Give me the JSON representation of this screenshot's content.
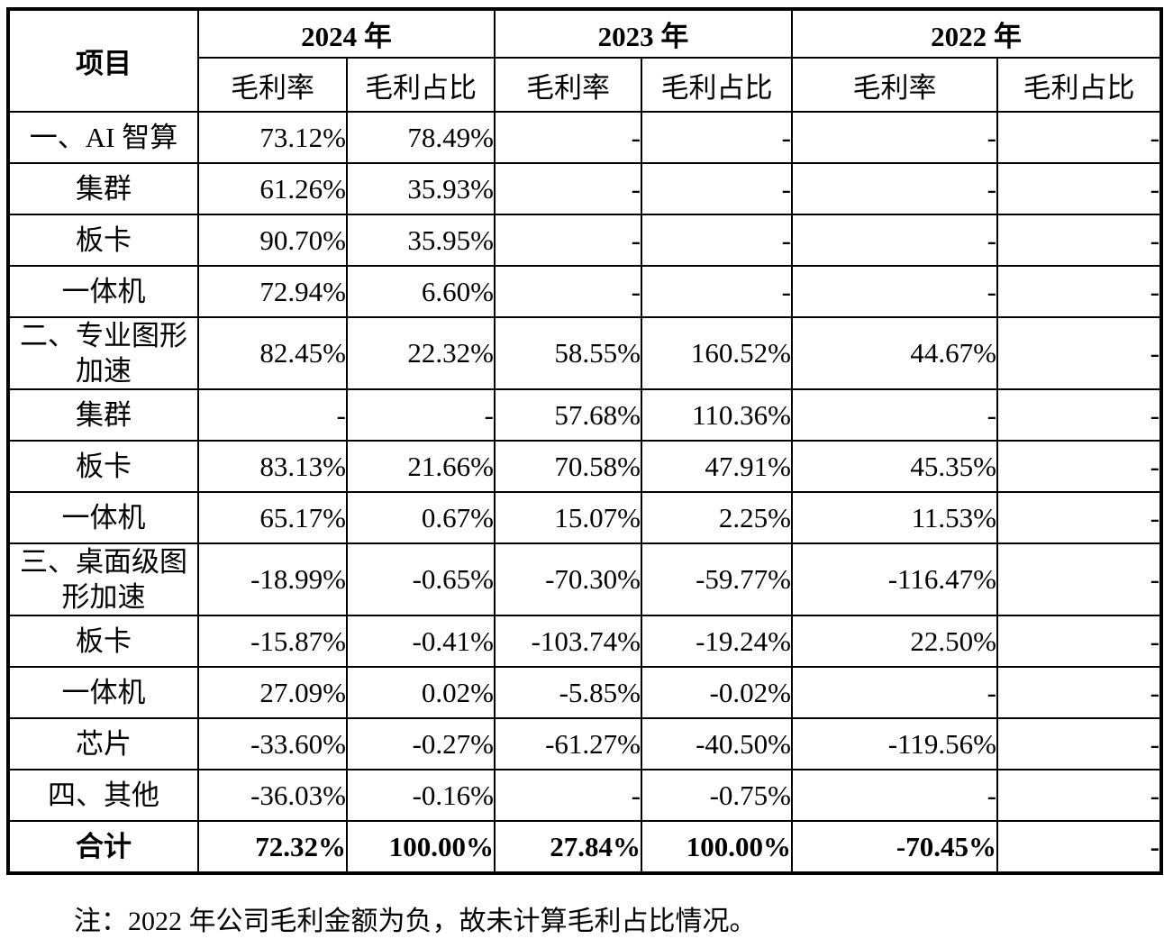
{
  "table": {
    "item_header": "项目",
    "year_groups": [
      {
        "year": "2024 年",
        "sub": [
          "毛利率",
          "毛利占比"
        ]
      },
      {
        "year": "2023 年",
        "sub": [
          "毛利率",
          "毛利占比"
        ]
      },
      {
        "year": "2022 年",
        "sub": [
          "毛利率",
          "毛利占比"
        ]
      }
    ],
    "rows": [
      {
        "label": "一、AI 智算",
        "values": [
          "73.12%",
          "78.49%",
          "-",
          "-",
          "-",
          "-"
        ]
      },
      {
        "label": "集群",
        "values": [
          "61.26%",
          "35.93%",
          "-",
          "-",
          "-",
          "-"
        ]
      },
      {
        "label": "板卡",
        "values": [
          "90.70%",
          "35.95%",
          "-",
          "-",
          "-",
          "-"
        ]
      },
      {
        "label": "一体机",
        "values": [
          "72.94%",
          "6.60%",
          "-",
          "-",
          "-",
          "-"
        ]
      },
      {
        "label": "二、专业图形\n加速",
        "values": [
          "82.45%",
          "22.32%",
          "58.55%",
          "160.52%",
          "44.67%",
          "-"
        ]
      },
      {
        "label": "集群",
        "values": [
          "-",
          "-",
          "57.68%",
          "110.36%",
          "-",
          "-"
        ]
      },
      {
        "label": "板卡",
        "values": [
          "83.13%",
          "21.66%",
          "70.58%",
          "47.91%",
          "45.35%",
          "-"
        ]
      },
      {
        "label": "一体机",
        "values": [
          "65.17%",
          "0.67%",
          "15.07%",
          "2.25%",
          "11.53%",
          "-"
        ]
      },
      {
        "label": "三、桌面级图\n形加速",
        "values": [
          "-18.99%",
          "-0.65%",
          "-70.30%",
          "-59.77%",
          "-116.47%",
          "-"
        ]
      },
      {
        "label": "板卡",
        "values": [
          "-15.87%",
          "-0.41%",
          "-103.74%",
          "-19.24%",
          "22.50%",
          "-"
        ]
      },
      {
        "label": "一体机",
        "values": [
          "27.09%",
          "0.02%",
          "-5.85%",
          "-0.02%",
          "-",
          "-"
        ]
      },
      {
        "label": "芯片",
        "values": [
          "-33.60%",
          "-0.27%",
          "-61.27%",
          "-40.50%",
          "-119.56%",
          "-"
        ]
      },
      {
        "label": "四、其他",
        "values": [
          "-36.03%",
          "-0.16%",
          "-",
          "-0.75%",
          "-",
          "-"
        ]
      },
      {
        "label": "合计",
        "values": [
          "72.32%",
          "100.00%",
          "27.84%",
          "100.00%",
          "-70.45%",
          "-"
        ]
      }
    ],
    "note": "注：2022 年公司毛利金额为负，故未计算毛利占比情况。"
  }
}
